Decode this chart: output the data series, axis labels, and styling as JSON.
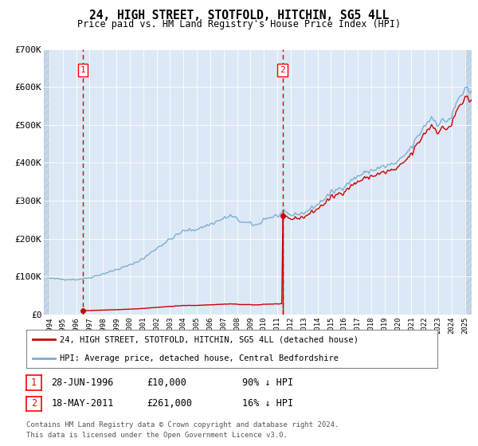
{
  "title": "24, HIGH STREET, STOTFOLD, HITCHIN, SG5 4LL",
  "subtitle": "Price paid vs. HM Land Registry's House Price Index (HPI)",
  "legend_line1": "24, HIGH STREET, STOTFOLD, HITCHIN, SG5 4LL (detached house)",
  "legend_line2": "HPI: Average price, detached house, Central Bedfordshire",
  "footnote1": "Contains HM Land Registry data © Crown copyright and database right 2024.",
  "footnote2": "This data is licensed under the Open Government Licence v3.0.",
  "annotation1_date": "28-JUN-1996",
  "annotation1_price": "£10,000",
  "annotation1_hpi": "90% ↓ HPI",
  "annotation2_date": "18-MAY-2011",
  "annotation2_price": "£261,000",
  "annotation2_hpi": "16% ↓ HPI",
  "sale1_year": 1996.49,
  "sale1_price": 10000,
  "sale2_year": 2011.38,
  "sale2_price": 261000,
  "ylim": [
    0,
    700000
  ],
  "yticks": [
    0,
    100000,
    200000,
    300000,
    400000,
    500000,
    600000,
    700000
  ],
  "ytick_labels": [
    "£0",
    "£100K",
    "£200K",
    "£300K",
    "£400K",
    "£500K",
    "£600K",
    "£700K"
  ],
  "xlim_start": 1993.6,
  "xlim_end": 2025.5,
  "hpi_color": "#7bafd4",
  "price_color": "#cc0000",
  "vline_color": "#dd0000",
  "bg_color": "#dce8f5",
  "hatch_bg": "#c5d8ea",
  "grid_color": "#ffffff",
  "hpi_base_1996": 92000,
  "hpi_base_2011": 310000
}
